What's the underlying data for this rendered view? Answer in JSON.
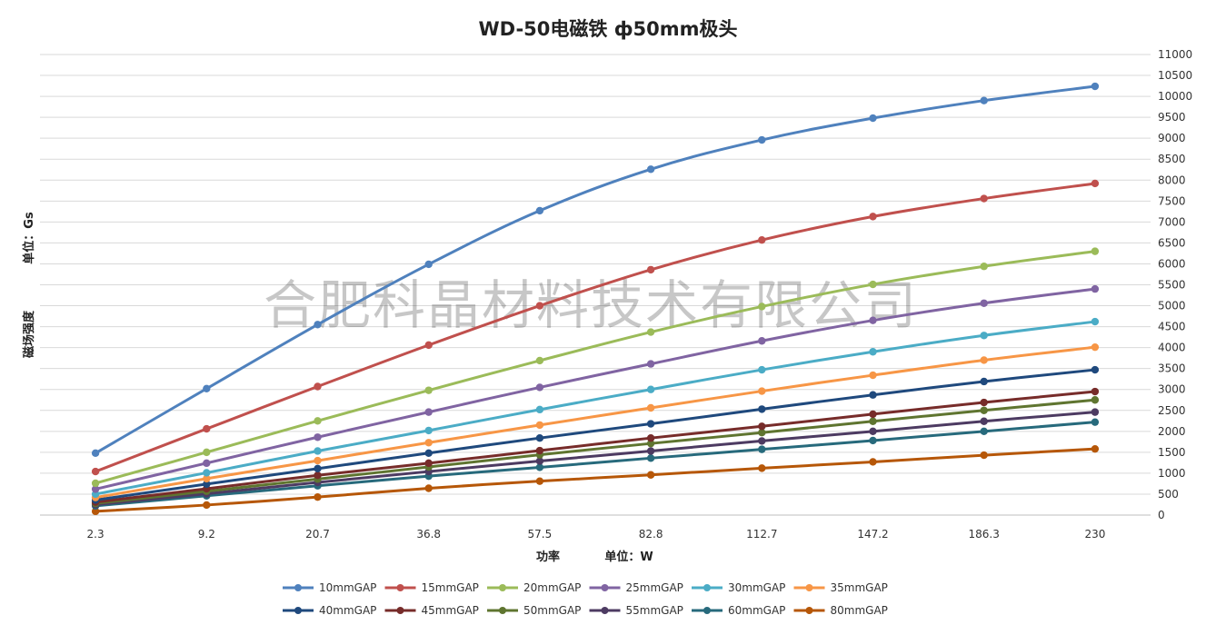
{
  "chart_data": {
    "type": "line",
    "title": "WD-50电磁铁 ф50mm极头",
    "xlabel": "功率",
    "xunit": "单位：W",
    "ylabel": "磁场强度",
    "yunit": "单位：Gs",
    "categories": [
      "2.3",
      "9.2",
      "20.7",
      "36.8",
      "57.5",
      "82.8",
      "112.7",
      "147.2",
      "186.3",
      "230"
    ],
    "ylim": [
      0,
      11000
    ],
    "ytick_step": 500,
    "ytick_labels": [
      "0",
      "500",
      "1000",
      "1500",
      "2000",
      "2500",
      "3000",
      "3500",
      "4000",
      "4500",
      "5000",
      "5500",
      "6000",
      "6500",
      "7000",
      "7500",
      "8000",
      "8500",
      "9000",
      "9500",
      "10000",
      "10500",
      "11000"
    ],
    "grid": true,
    "legend_position": "bottom",
    "watermark": "合肥科晶材料技术有限公司",
    "series": [
      {
        "name": "10mmGAP",
        "color": "#4F81BD",
        "values": [
          1480,
          3020,
          4550,
          5990,
          7270,
          8260,
          8960,
          9480,
          9900,
          10240
        ]
      },
      {
        "name": "15mmGAP",
        "color": "#C0504D",
        "values": [
          1040,
          2060,
          3070,
          4060,
          5000,
          5860,
          6570,
          7130,
          7560,
          7920
        ]
      },
      {
        "name": "20mmGAP",
        "color": "#9BBB59",
        "values": [
          760,
          1500,
          2250,
          2980,
          3690,
          4370,
          4980,
          5510,
          5940,
          6300
        ]
      },
      {
        "name": "25mmGAP",
        "color": "#8064A2",
        "values": [
          620,
          1240,
          1860,
          2460,
          3050,
          3610,
          4160,
          4650,
          5060,
          5400
        ]
      },
      {
        "name": "30mmGAP",
        "color": "#4BACC6",
        "values": [
          500,
          1010,
          1530,
          2020,
          2520,
          3000,
          3470,
          3900,
          4290,
          4620
        ]
      },
      {
        "name": "35mmGAP",
        "color": "#F79646",
        "values": [
          420,
          870,
          1300,
          1730,
          2150,
          2560,
          2960,
          3340,
          3700,
          4010
        ]
      },
      {
        "name": "40mmGAP",
        "color": "#1F497D",
        "values": [
          360,
          740,
          1110,
          1480,
          1840,
          2180,
          2530,
          2870,
          3190,
          3470
        ]
      },
      {
        "name": "45mmGAP",
        "color": "#772C2A",
        "values": [
          310,
          630,
          950,
          1240,
          1540,
          1840,
          2120,
          2410,
          2690,
          2950
        ]
      },
      {
        "name": "50mmGAP",
        "color": "#5F7530",
        "values": [
          280,
          570,
          860,
          1150,
          1440,
          1710,
          1970,
          2240,
          2500,
          2750
        ]
      },
      {
        "name": "55mmGAP",
        "color": "#4D3B62",
        "values": [
          250,
          510,
          780,
          1040,
          1290,
          1530,
          1770,
          2000,
          2240,
          2460
        ]
      },
      {
        "name": "60mmGAP",
        "color": "#276A7C",
        "values": [
          220,
          460,
          700,
          930,
          1140,
          1360,
          1570,
          1780,
          2000,
          2220
        ]
      },
      {
        "name": "80mmGAP",
        "color": "#B65708",
        "values": [
          90,
          240,
          430,
          640,
          810,
          960,
          1120,
          1270,
          1430,
          1580
        ]
      }
    ]
  }
}
